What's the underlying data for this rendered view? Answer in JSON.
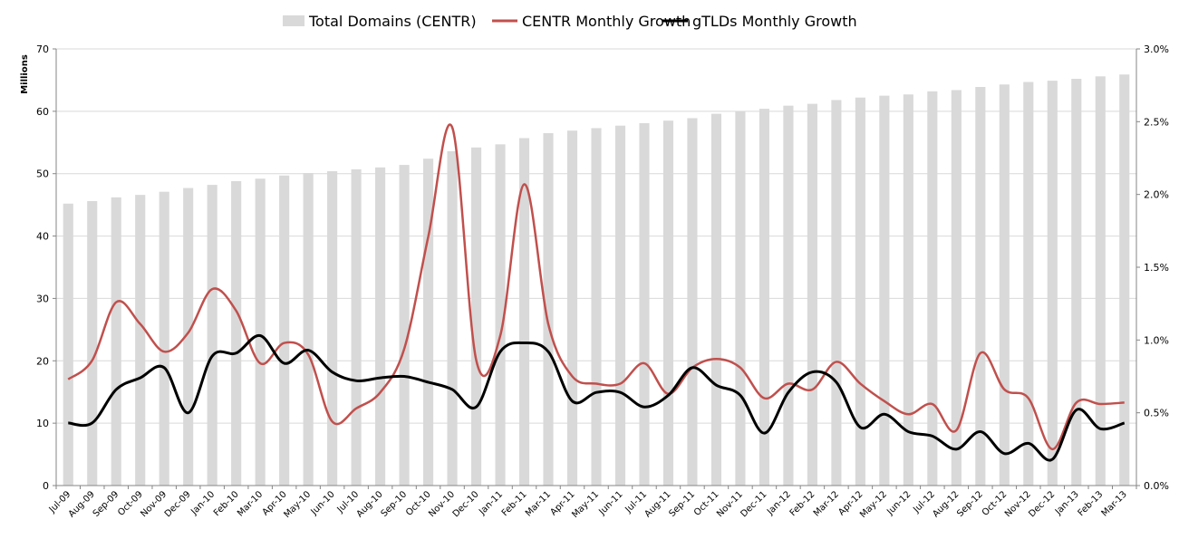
{
  "chart_data": {
    "type": "bar+line",
    "title": "",
    "ylabel_left": "Millions",
    "ylabel_right": "",
    "ylim_left": [
      0,
      70
    ],
    "yticks_left": [
      "0",
      "10",
      "20",
      "30",
      "40",
      "50",
      "60",
      "70"
    ],
    "ylim_right": [
      0,
      3.0
    ],
    "yticks_right": [
      "0.0%",
      "0.5%",
      "1.0%",
      "1.5%",
      "2.0%",
      "2.5%",
      "3.0%"
    ],
    "grid": true,
    "legend_position": "top",
    "categories": [
      "Jul-09",
      "Aug-09",
      "Sep-09",
      "Oct-09",
      "Nov-09",
      "Dec-09",
      "Jan-10",
      "Feb-10",
      "Mar-10",
      "Apr-10",
      "May-10",
      "Jun-10",
      "Jul-10",
      "Aug-10",
      "Sep-10",
      "Oct-10",
      "Nov-10",
      "Dec-10",
      "Jan-11",
      "Feb-11",
      "Mar-11",
      "Apr-11",
      "May-11",
      "Jun-11",
      "Jul-11",
      "Aug-11",
      "Sep-11",
      "Oct-11",
      "Nov-11",
      "Dec-11",
      "Jan-12",
      "Feb-12",
      "Mar-12",
      "Apr-12",
      "May-12",
      "Jun-12",
      "Jul-12",
      "Aug-12",
      "Sep-12",
      "Oct-12",
      "Nov-12",
      "Dec-12",
      "Jan-13",
      "Feb-13",
      "Mar-13"
    ],
    "series": [
      {
        "name": "Total Domains (CENTR)",
        "type": "bar",
        "axis": "left",
        "color": "#d9d9d9",
        "values": [
          45.2,
          45.6,
          46.2,
          46.6,
          47.1,
          47.7,
          48.2,
          48.8,
          49.2,
          49.7,
          50.1,
          50.4,
          50.7,
          51.0,
          51.4,
          52.4,
          53.6,
          54.2,
          54.7,
          55.7,
          56.5,
          56.9,
          57.3,
          57.7,
          58.1,
          58.5,
          58.9,
          59.6,
          60.0,
          60.4,
          60.9,
          61.2,
          61.8,
          62.2,
          62.5,
          62.7,
          63.2,
          63.4,
          63.9,
          64.3,
          64.7,
          64.9,
          65.2,
          65.6,
          65.9
        ]
      },
      {
        "name": "CENTR Monthly Growth",
        "type": "line",
        "axis": "right",
        "color": "#c0504d",
        "values": [
          0.73,
          0.86,
          1.26,
          1.11,
          0.92,
          1.05,
          1.35,
          1.2,
          0.84,
          0.98,
          0.9,
          0.44,
          0.53,
          0.64,
          0.94,
          1.71,
          2.46,
          0.86,
          1.03,
          2.07,
          1.11,
          0.75,
          0.7,
          0.7,
          0.84,
          0.63,
          0.81,
          0.87,
          0.81,
          0.6,
          0.7,
          0.66,
          0.85,
          0.7,
          0.58,
          0.49,
          0.56,
          0.38,
          0.91,
          0.66,
          0.6,
          0.25,
          0.57,
          0.56,
          0.57
        ]
      },
      {
        "name": "gTLDs Monthly Growth",
        "type": "line",
        "axis": "right",
        "color": "#000000",
        "values": [
          0.43,
          0.43,
          0.66,
          0.74,
          0.81,
          0.5,
          0.89,
          0.91,
          1.03,
          0.84,
          0.93,
          0.78,
          0.72,
          0.74,
          0.75,
          0.71,
          0.66,
          0.54,
          0.92,
          0.98,
          0.92,
          0.58,
          0.64,
          0.64,
          0.54,
          0.62,
          0.81,
          0.69,
          0.62,
          0.36,
          0.64,
          0.78,
          0.71,
          0.4,
          0.49,
          0.37,
          0.34,
          0.25,
          0.37,
          0.22,
          0.29,
          0.18,
          0.52,
          0.39,
          0.43
        ]
      }
    ]
  }
}
